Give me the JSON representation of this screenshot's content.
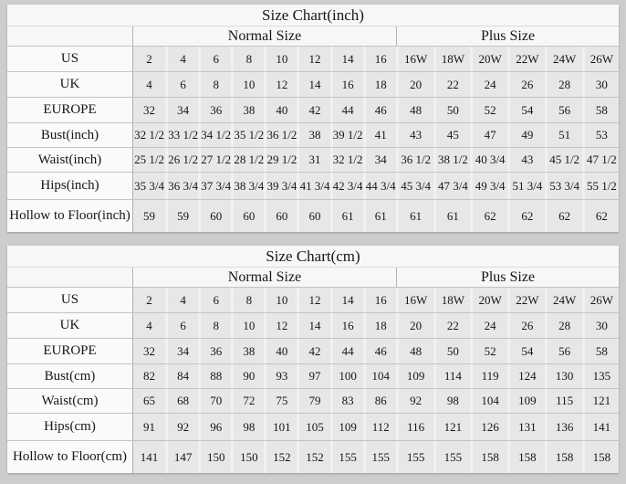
{
  "page": {
    "background": "#cdcdcd",
    "cell_color": "#e7e7e7",
    "label_color": "#fafafa",
    "line_color": "#c3c3c3"
  },
  "chart_data": [
    {
      "type": "table",
      "title": "Size Chart(inch)",
      "group_headers": {
        "normal": "Normal Size",
        "plus": "Plus Size"
      },
      "column_groups": [
        {
          "label": "Normal Size",
          "span": 8
        },
        {
          "label": "Plus Size",
          "span": 6
        }
      ],
      "rows": [
        {
          "label": "US",
          "values": [
            "2",
            "4",
            "6",
            "8",
            "10",
            "12",
            "14",
            "16",
            "16W",
            "18W",
            "20W",
            "22W",
            "24W",
            "26W"
          ]
        },
        {
          "label": "UK",
          "values": [
            "4",
            "6",
            "8",
            "10",
            "12",
            "14",
            "16",
            "18",
            "20",
            "22",
            "24",
            "26",
            "28",
            "30"
          ]
        },
        {
          "label": "EUROPE",
          "values": [
            "32",
            "34",
            "36",
            "38",
            "40",
            "42",
            "44",
            "46",
            "48",
            "50",
            "52",
            "54",
            "56",
            "58"
          ]
        },
        {
          "label": "Bust(inch)",
          "values": [
            "32 1/2",
            "33 1/2",
            "34 1/2",
            "35 1/2",
            "36 1/2",
            "38",
            "39 1/2",
            "41",
            "43",
            "45",
            "47",
            "49",
            "51",
            "53"
          ]
        },
        {
          "label": "Waist(inch)",
          "values": [
            "25 1/2",
            "26 1/2",
            "27 1/2",
            "28 1/2",
            "29 1/2",
            "31",
            "32 1/2",
            "34",
            "36 1/2",
            "38 1/2",
            "40 3/4",
            "43",
            "45 1/2",
            "47 1/2"
          ]
        },
        {
          "label": "Hips(inch)",
          "values": [
            "35 3/4",
            "36 3/4",
            "37 3/4",
            "38 3/4",
            "39 3/4",
            "41 3/4",
            "42 3/4",
            "44 3/4",
            "45 3/4",
            "47 3/4",
            "49 3/4",
            "51 3/4",
            "53 3/4",
            "55 1/2"
          ]
        },
        {
          "label": "Hollow to Floor(inch)",
          "values": [
            "59",
            "59",
            "60",
            "60",
            "60",
            "60",
            "61",
            "61",
            "61",
            "61",
            "62",
            "62",
            "62",
            "62"
          ]
        }
      ]
    },
    {
      "type": "table",
      "title": "Size Chart(cm)",
      "group_headers": {
        "normal": "Normal Size",
        "plus": "Plus Size"
      },
      "column_groups": [
        {
          "label": "Normal Size",
          "span": 8
        },
        {
          "label": "Plus Size",
          "span": 6
        }
      ],
      "rows": [
        {
          "label": "US",
          "values": [
            "2",
            "4",
            "6",
            "8",
            "10",
            "12",
            "14",
            "16",
            "16W",
            "18W",
            "20W",
            "22W",
            "24W",
            "26W"
          ]
        },
        {
          "label": "UK",
          "values": [
            "4",
            "6",
            "8",
            "10",
            "12",
            "14",
            "16",
            "18",
            "20",
            "22",
            "24",
            "26",
            "28",
            "30"
          ]
        },
        {
          "label": "EUROPE",
          "values": [
            "32",
            "34",
            "36",
            "38",
            "40",
            "42",
            "44",
            "46",
            "48",
            "50",
            "52",
            "54",
            "56",
            "58"
          ]
        },
        {
          "label": "Bust(cm)",
          "values": [
            "82",
            "84",
            "88",
            "90",
            "93",
            "97",
            "100",
            "104",
            "109",
            "114",
            "119",
            "124",
            "130",
            "135"
          ]
        },
        {
          "label": "Waist(cm)",
          "values": [
            "65",
            "68",
            "70",
            "72",
            "75",
            "79",
            "83",
            "86",
            "92",
            "98",
            "104",
            "109",
            "115",
            "121"
          ]
        },
        {
          "label": "Hips(cm)",
          "values": [
            "91",
            "92",
            "96",
            "98",
            "101",
            "105",
            "109",
            "112",
            "116",
            "121",
            "126",
            "131",
            "136",
            "141"
          ]
        },
        {
          "label": "Hollow to Floor(cm)",
          "values": [
            "141",
            "147",
            "150",
            "150",
            "152",
            "152",
            "155",
            "155",
            "155",
            "155",
            "158",
            "158",
            "158",
            "158"
          ]
        }
      ]
    }
  ]
}
